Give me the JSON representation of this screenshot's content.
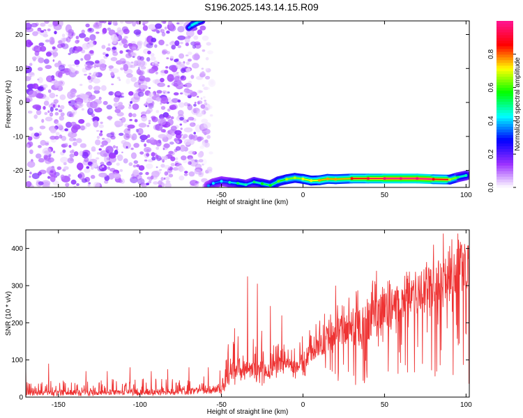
{
  "title": "S196.2025.143.14.15.R09",
  "chart_data": [
    {
      "type": "heatmap",
      "xlabel": "Height of straight line (km)",
      "ylabel": "Frequency (Hz)",
      "xlim": [
        -170,
        102
      ],
      "ylim": [
        -25,
        24
      ],
      "x_ticks": [
        -150,
        -100,
        -50,
        0,
        50,
        100
      ],
      "y_ticks": [
        -20,
        -10,
        0,
        10,
        20
      ],
      "colorbar": {
        "label": "Normalized spectral amplitude",
        "range": [
          0,
          1
        ],
        "ticks": [
          0.0,
          0.2,
          0.4,
          0.6,
          0.8
        ],
        "colormap": [
          "#ffffff",
          "#9b30ff",
          "#0000ff",
          "#00ffff",
          "#00ff00",
          "#ffff00",
          "#ff0000",
          "#ff1493"
        ]
      },
      "noise_region": {
        "x_range": [
          -170,
          -55
        ],
        "y_range": [
          -25,
          24
        ],
        "amplitude_range": [
          0.0,
          0.18
        ]
      },
      "ridge": {
        "x": [
          -58,
          -55,
          -50,
          -45,
          -40,
          -35,
          -30,
          -25,
          -20,
          -15,
          -10,
          -5,
          0,
          5,
          10,
          15,
          20,
          30,
          40,
          50,
          60,
          70,
          80,
          90,
          95,
          100
        ],
        "frequency": [
          -24.5,
          -23.8,
          -23.2,
          -23.5,
          -23.8,
          -24.2,
          -23.4,
          -23.9,
          -24.4,
          -23.2,
          -22.6,
          -22.2,
          -22.5,
          -23.0,
          -22.9,
          -22.5,
          -22.6,
          -22.4,
          -22.4,
          -22.4,
          -22.4,
          -22.4,
          -22.6,
          -22.7,
          -22.0,
          -21.5
        ],
        "amplitude": [
          0.25,
          0.3,
          0.3,
          0.35,
          0.4,
          0.35,
          0.4,
          0.45,
          0.45,
          0.5,
          0.55,
          0.55,
          0.6,
          0.6,
          0.65,
          0.65,
          0.65,
          0.75,
          0.8,
          0.85,
          0.85,
          0.85,
          0.75,
          0.55,
          0.4,
          0.35
        ]
      },
      "upper_feature": {
        "x": [
          -70,
          -68,
          -66,
          -64,
          -62
        ],
        "frequency": [
          22,
          22.8,
          23.3,
          23.7,
          24
        ],
        "amplitude": [
          0.3,
          0.35,
          0.35,
          0.3,
          0.25
        ]
      }
    },
    {
      "type": "line",
      "xlabel": "Height of straight line (km)",
      "ylabel": "SNR (10 * v/v)",
      "xlim": [
        -170,
        102
      ],
      "ylim": [
        0,
        450
      ],
      "x_ticks": [
        -150,
        -100,
        -50,
        0,
        50,
        100
      ],
      "y_ticks": [
        0,
        100,
        200,
        300,
        400
      ],
      "color": "#ee3333",
      "envelope": {
        "x": [
          -170,
          -150,
          -100,
          -70,
          -60,
          -50,
          -45,
          -40,
          -35,
          -30,
          -25,
          -20,
          -15,
          -10,
          -5,
          0,
          5,
          10,
          20,
          30,
          40,
          50,
          60,
          70,
          80,
          85,
          90,
          95,
          100
        ],
        "baseline": [
          12,
          12,
          13,
          15,
          18,
          22,
          60,
          80,
          75,
          70,
          70,
          80,
          85,
          90,
          80,
          100,
          120,
          140,
          170,
          180,
          200,
          230,
          250,
          270,
          300,
          300,
          330,
          340,
          360
        ],
        "peak": [
          40,
          45,
          50,
          55,
          60,
          80,
          170,
          200,
          190,
          165,
          180,
          180,
          160,
          140,
          150,
          175,
          190,
          220,
          260,
          300,
          310,
          330,
          340,
          345,
          380,
          420,
          440,
          430,
          420
        ],
        "trough": [
          2,
          2,
          3,
          3,
          5,
          8,
          20,
          30,
          25,
          25,
          30,
          40,
          40,
          40,
          40,
          50,
          50,
          50,
          40,
          30,
          30,
          30,
          30,
          40,
          40,
          60,
          30,
          20,
          30
        ]
      },
      "spikes": [
        {
          "x": -174,
          "y": 75
        },
        {
          "x": -156,
          "y": 90
        },
        {
          "x": -133,
          "y": 70
        },
        {
          "x": -120,
          "y": 70
        },
        {
          "x": -106,
          "y": 80
        },
        {
          "x": -93,
          "y": 70
        },
        {
          "x": -83,
          "y": 75
        },
        {
          "x": -70,
          "y": 80
        },
        {
          "x": -58,
          "y": 80
        },
        {
          "x": -34,
          "y": 325
        },
        {
          "x": -28,
          "y": 305
        },
        {
          "x": -20,
          "y": 245
        },
        {
          "x": -13,
          "y": 220
        },
        {
          "x": 20,
          "y": 300
        },
        {
          "x": 45,
          "y": 340
        },
        {
          "x": 80,
          "y": 410
        },
        {
          "x": 86,
          "y": 440
        },
        {
          "x": 95,
          "y": 440
        }
      ]
    }
  ]
}
